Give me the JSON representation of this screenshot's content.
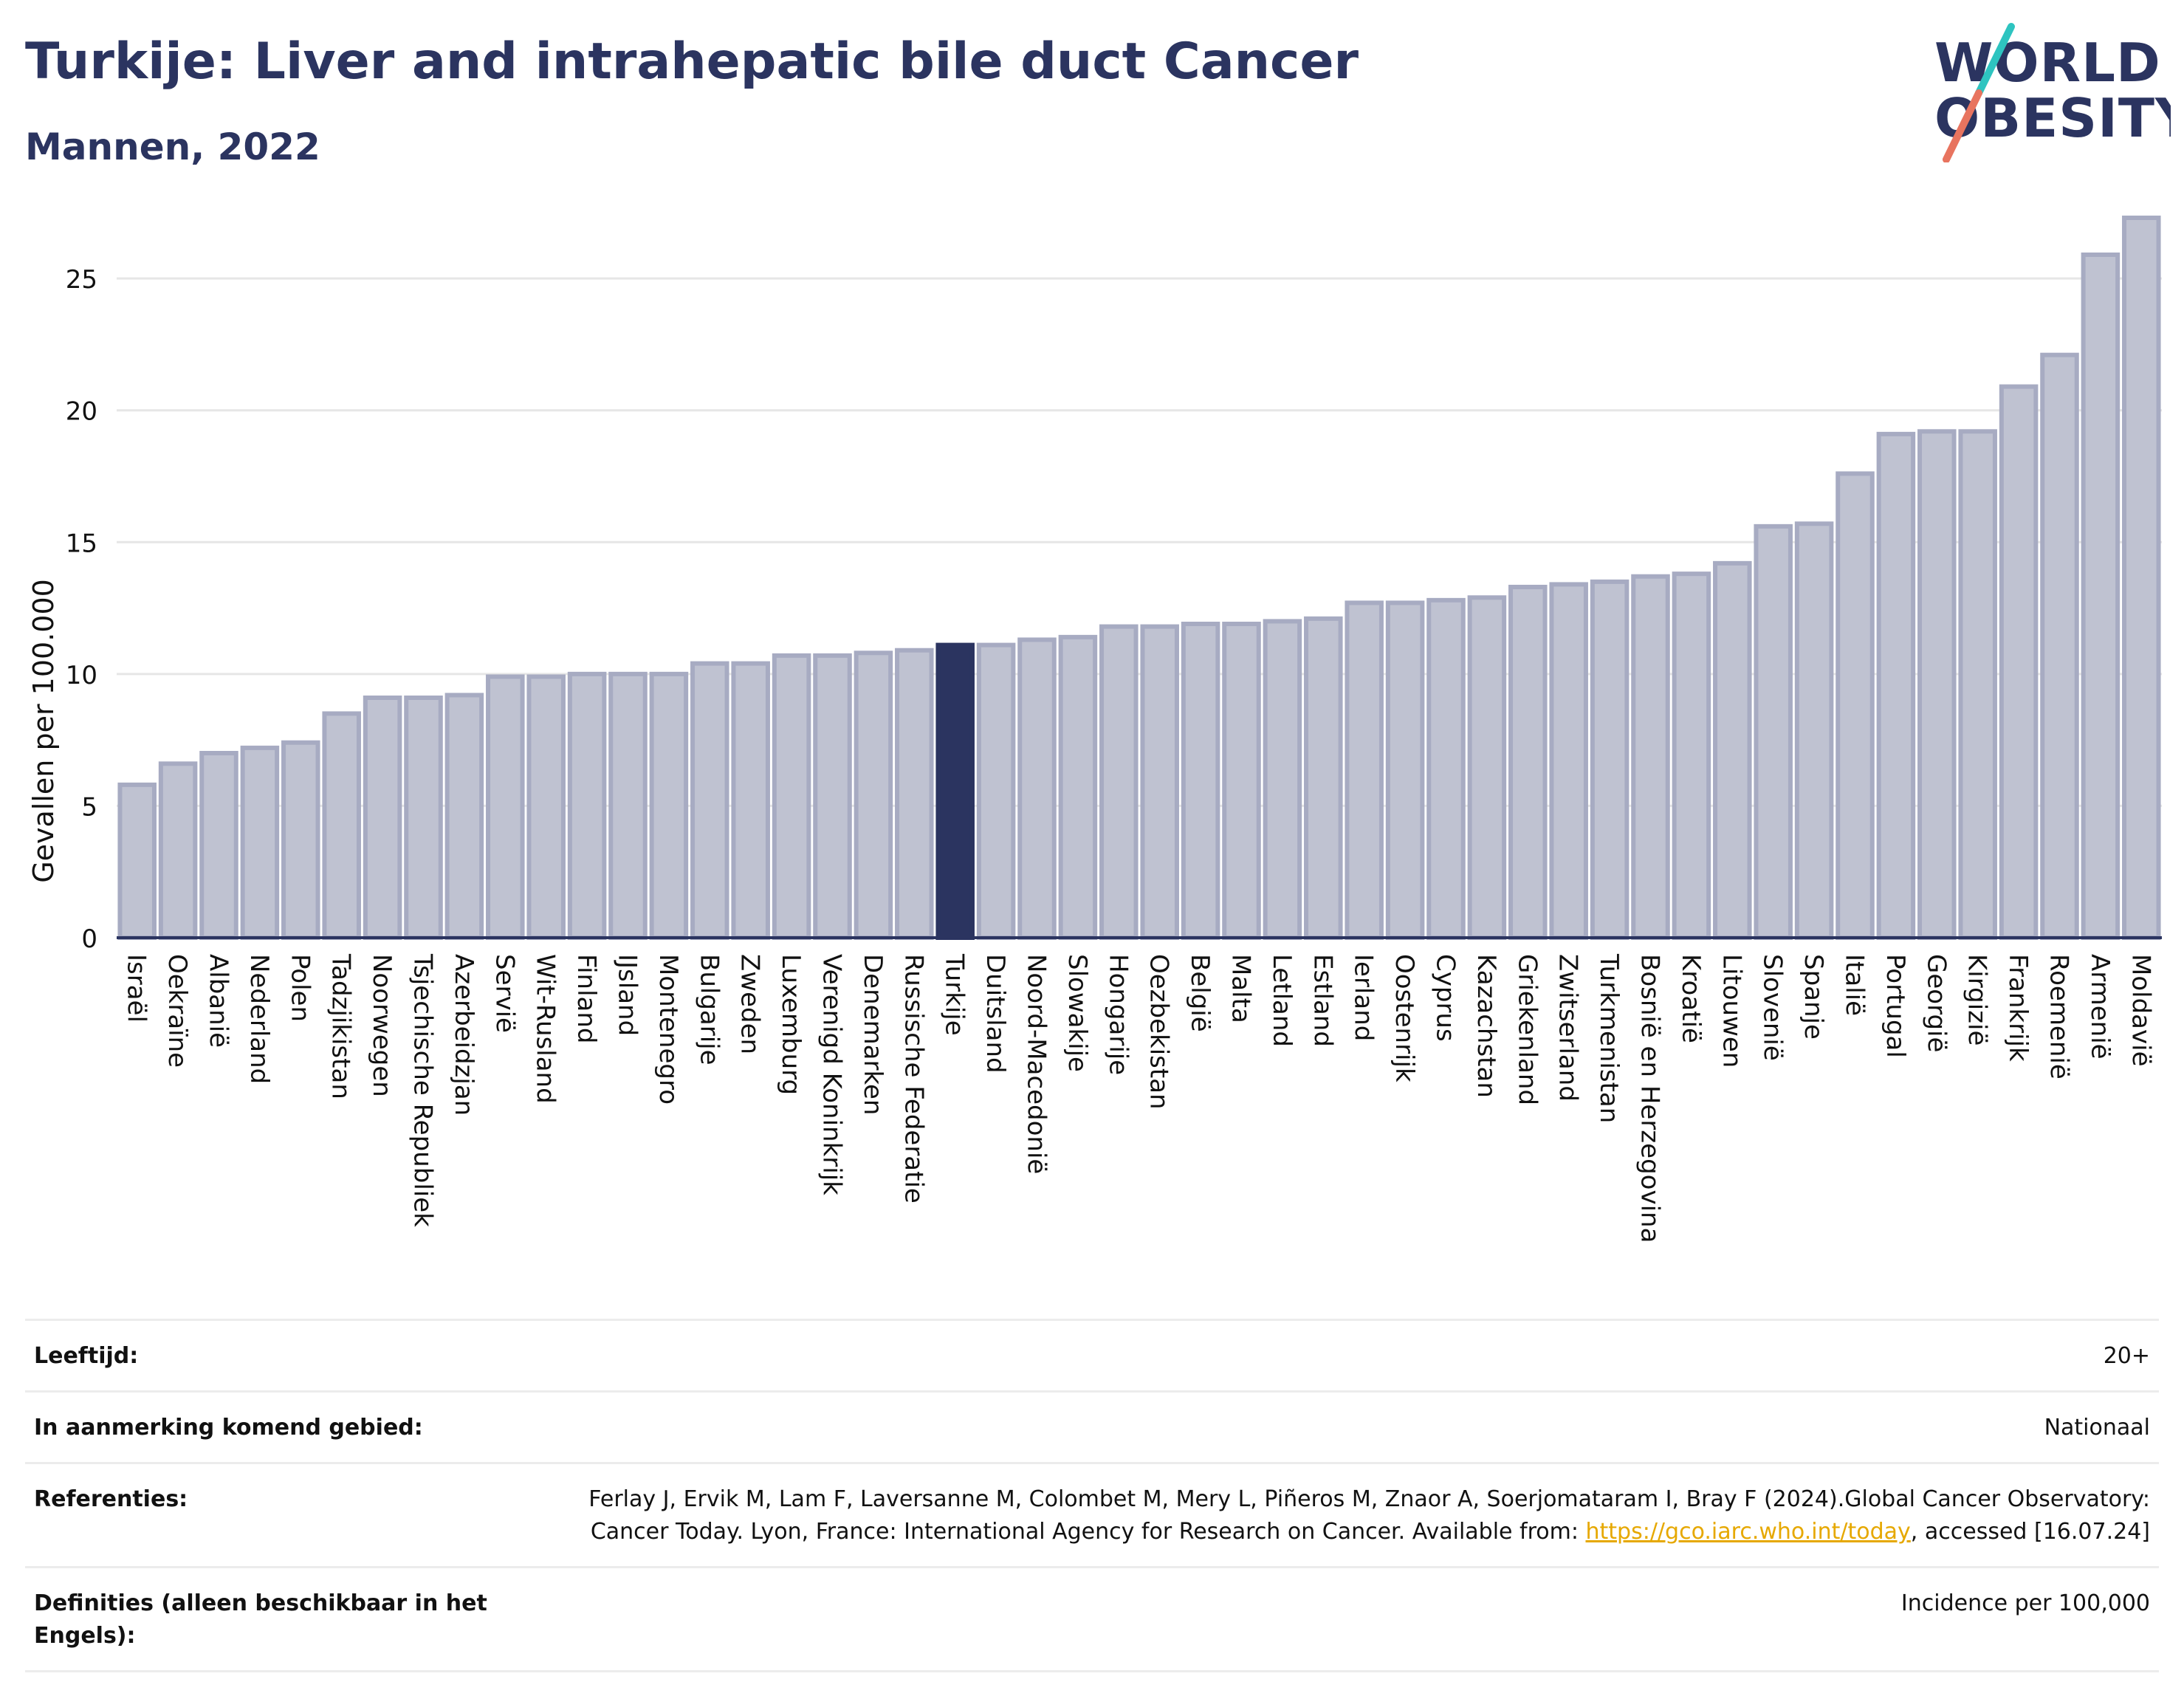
{
  "header": {
    "title": "Turkije: Liver and intrahepatic bile duct Cancer",
    "subtitle": "Mannen, 2022"
  },
  "logo": {
    "line1": "WORLD",
    "line2": "OBESITY",
    "colors": {
      "text": "#2b3460",
      "slash_top": "#2ec4c0",
      "slash_bottom": "#e8745f"
    }
  },
  "colors": {
    "bar_fill": "#bfc2d1",
    "bar_stroke": "#a7abc2",
    "highlight_fill": "#2b3460",
    "grid": "#e6e6e6",
    "axis_line": "#2b3460"
  },
  "chart_data": {
    "type": "bar",
    "title": "Turkije: Liver and intrahepatic bile duct Cancer",
    "subtitle": "Mannen, 2022",
    "ylabel": "Gevallen per 100.000",
    "xlabel": "",
    "ylim": [
      0,
      28
    ],
    "yticks": [
      0,
      5,
      10,
      15,
      20,
      25
    ],
    "grid": true,
    "highlight": "Turkije",
    "categories": [
      "Israël",
      "Oekraïne",
      "Albanië",
      "Nederland",
      "Polen",
      "Tadzjikistan",
      "Noorwegen",
      "Tsjechische Republiek",
      "Azerbeidzjan",
      "Servië",
      "Wit-Rusland",
      "Finland",
      "IJsland",
      "Montenegro",
      "Bulgarije",
      "Zweden",
      "Luxemburg",
      "Verenigd Koninkrijk",
      "Denemarken",
      "Russische Federatie",
      "Turkije",
      "Duitsland",
      "Noord-Macedonië",
      "Slowakije",
      "Hongarije",
      "Oezbekistan",
      "België",
      "Malta",
      "Letland",
      "Estland",
      "Ierland",
      "Oostenrijk",
      "Cyprus",
      "Kazachstan",
      "Griekenland",
      "Zwitserland",
      "Turkmenistan",
      "Bosnië en Herzegovina",
      "Kroatië",
      "Litouwen",
      "Slovenië",
      "Spanje",
      "Italië",
      "Portugal",
      "Georgië",
      "Kirgizië",
      "Frankrijk",
      "Roemenië",
      "Armenië",
      "Moldavië"
    ],
    "values": [
      5.8,
      6.6,
      7.0,
      7.2,
      7.4,
      8.5,
      9.1,
      9.1,
      9.2,
      9.9,
      9.9,
      10.0,
      10.0,
      10.0,
      10.4,
      10.4,
      10.7,
      10.7,
      10.8,
      10.9,
      11.1,
      11.1,
      11.3,
      11.4,
      11.8,
      11.8,
      11.9,
      11.9,
      12.0,
      12.1,
      12.7,
      12.7,
      12.8,
      12.9,
      13.3,
      13.4,
      13.5,
      13.7,
      13.8,
      14.2,
      15.6,
      15.7,
      17.6,
      19.1,
      19.2,
      19.2,
      20.9,
      22.1,
      25.9,
      27.3
    ]
  },
  "info": {
    "rows": [
      {
        "label": "Leeftijd:",
        "value": "20+"
      },
      {
        "label": "In aanmerking komend gebied:",
        "value": "Nationaal"
      },
      {
        "label": "Referenties:",
        "value_pre": "Ferlay J, Ervik M, Lam F, Laversanne M, Colombet M, Mery L, Piñeros M, Znaor A, Soerjomataram I, Bray F (2024).Global Cancer Observatory: Cancer Today. Lyon, France: International Agency for Research on Cancer. Available from: ",
        "link": "https://gco.iarc.who.int/today",
        "value_post": ", accessed [16.07.24]"
      },
      {
        "label": "Definities (alleen beschikbaar in het Engels):",
        "value": "Incidence per 100,000"
      }
    ]
  }
}
